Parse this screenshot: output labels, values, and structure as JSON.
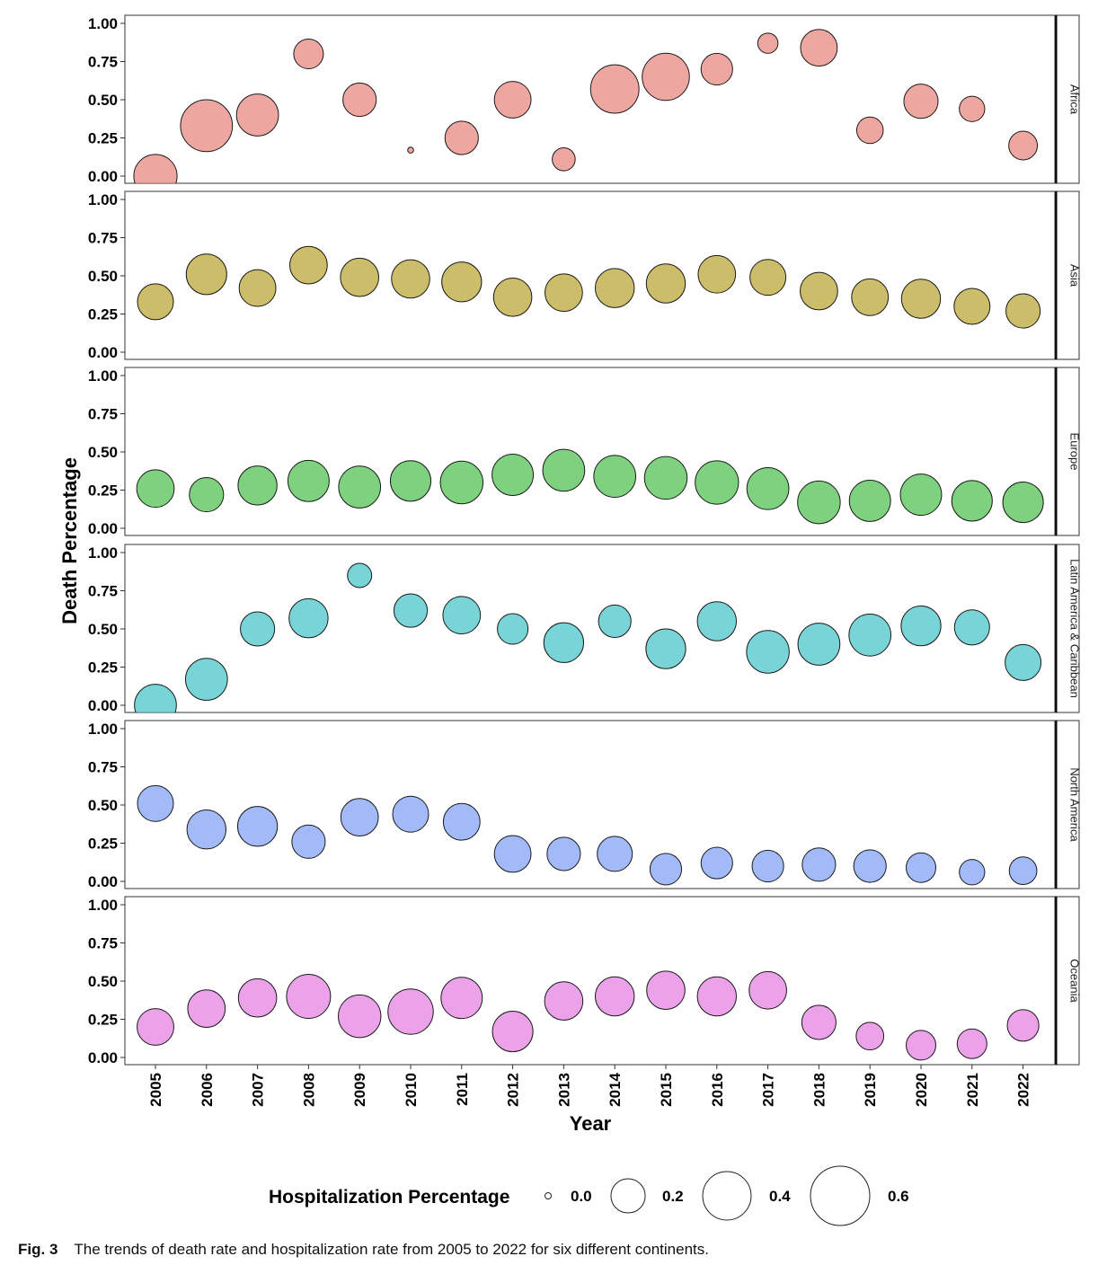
{
  "chart_data": {
    "type": "scatter",
    "subtype": "bubble-faceted",
    "xlabel": "Year",
    "ylabel": "Death Percentage",
    "x": [
      2005,
      2006,
      2007,
      2008,
      2009,
      2010,
      2011,
      2012,
      2013,
      2014,
      2015,
      2016,
      2017,
      2018,
      2019,
      2020,
      2021,
      2022
    ],
    "x_tick_labels": [
      "2005",
      "2006",
      "2007",
      "2008",
      "2009",
      "2010",
      "2011",
      "2012",
      "2013",
      "2014",
      "2015",
      "2016",
      "2017",
      "2018",
      "2019",
      "2020",
      "2021",
      "2022"
    ],
    "ylim": [
      0,
      1
    ],
    "y_ticks": [
      "0.00",
      "0.25",
      "0.50",
      "0.75",
      "1.00"
    ],
    "size_legend": {
      "title": "Hospitalization Percentage",
      "values": [
        0.0,
        0.2,
        0.4,
        0.6
      ],
      "labels": [
        "0.0",
        "0.2",
        "0.4",
        "0.6"
      ]
    },
    "grid": false,
    "legend_position": "bottom",
    "facets": [
      {
        "name": "Africa",
        "color": "#e8857b",
        "death": [
          0.0,
          0.33,
          0.4,
          0.8,
          0.5,
          0.17,
          0.25,
          0.5,
          0.11,
          0.57,
          0.65,
          0.7,
          0.87,
          0.84,
          0.3,
          0.49,
          0.44,
          0.2
        ],
        "hospitalization": [
          0.32,
          0.46,
          0.3,
          0.15,
          0.19,
          0.006,
          0.19,
          0.23,
          0.09,
          0.4,
          0.38,
          0.17,
          0.07,
          0.23,
          0.12,
          0.2,
          0.11,
          0.14
        ]
      },
      {
        "name": "Asia",
        "color": "#b8a431",
        "death": [
          0.33,
          0.51,
          0.42,
          0.57,
          0.49,
          0.48,
          0.46,
          0.36,
          0.39,
          0.42,
          0.45,
          0.51,
          0.49,
          0.4,
          0.36,
          0.35,
          0.3,
          0.27
        ],
        "hospitalization": [
          0.22,
          0.28,
          0.23,
          0.24,
          0.25,
          0.25,
          0.27,
          0.25,
          0.24,
          0.26,
          0.26,
          0.24,
          0.22,
          0.24,
          0.23,
          0.26,
          0.22,
          0.2
        ]
      },
      {
        "name": "Europe",
        "color": "#4cbf4c",
        "death": [
          0.26,
          0.22,
          0.28,
          0.31,
          0.27,
          0.31,
          0.3,
          0.35,
          0.38,
          0.34,
          0.33,
          0.3,
          0.26,
          0.17,
          0.18,
          0.22,
          0.18,
          0.17
        ],
        "hospitalization": [
          0.24,
          0.2,
          0.26,
          0.29,
          0.3,
          0.28,
          0.31,
          0.29,
          0.3,
          0.3,
          0.31,
          0.32,
          0.3,
          0.31,
          0.29,
          0.29,
          0.28,
          0.28
        ]
      },
      {
        "name": "Latin America & Caribbean",
        "color": "#45c4c8",
        "death": [
          0.0,
          0.17,
          0.5,
          0.57,
          0.85,
          0.62,
          0.59,
          0.5,
          0.41,
          0.55,
          0.37,
          0.55,
          0.35,
          0.4,
          0.46,
          0.52,
          0.51,
          0.28
        ],
        "hospitalization": [
          0.3,
          0.3,
          0.2,
          0.26,
          0.1,
          0.19,
          0.24,
          0.16,
          0.27,
          0.18,
          0.27,
          0.26,
          0.31,
          0.3,
          0.3,
          0.27,
          0.21,
          0.22
        ]
      },
      {
        "name": "North America",
        "color": "#7ea1f5",
        "death": [
          0.51,
          0.34,
          0.36,
          0.26,
          0.42,
          0.44,
          0.39,
          0.18,
          0.18,
          0.18,
          0.08,
          0.12,
          0.1,
          0.11,
          0.1,
          0.09,
          0.06,
          0.07
        ],
        "hospitalization": [
          0.22,
          0.26,
          0.27,
          0.19,
          0.24,
          0.22,
          0.23,
          0.23,
          0.19,
          0.21,
          0.17,
          0.17,
          0.17,
          0.19,
          0.18,
          0.15,
          0.11,
          0.13
        ]
      },
      {
        "name": "Oceania",
        "color": "#e47ee0",
        "death": [
          0.2,
          0.32,
          0.39,
          0.4,
          0.27,
          0.3,
          0.39,
          0.17,
          0.37,
          0.4,
          0.44,
          0.4,
          0.44,
          0.23,
          0.14,
          0.08,
          0.09,
          0.21
        ],
        "hospitalization": [
          0.23,
          0.24,
          0.25,
          0.33,
          0.31,
          0.35,
          0.29,
          0.28,
          0.25,
          0.26,
          0.25,
          0.26,
          0.24,
          0.2,
          0.13,
          0.15,
          0.15,
          0.17
        ]
      }
    ]
  },
  "caption": {
    "label": "Fig. 3",
    "text": "The trends of death rate and hospitalization rate from 2005 to 2022 for six different continents."
  }
}
